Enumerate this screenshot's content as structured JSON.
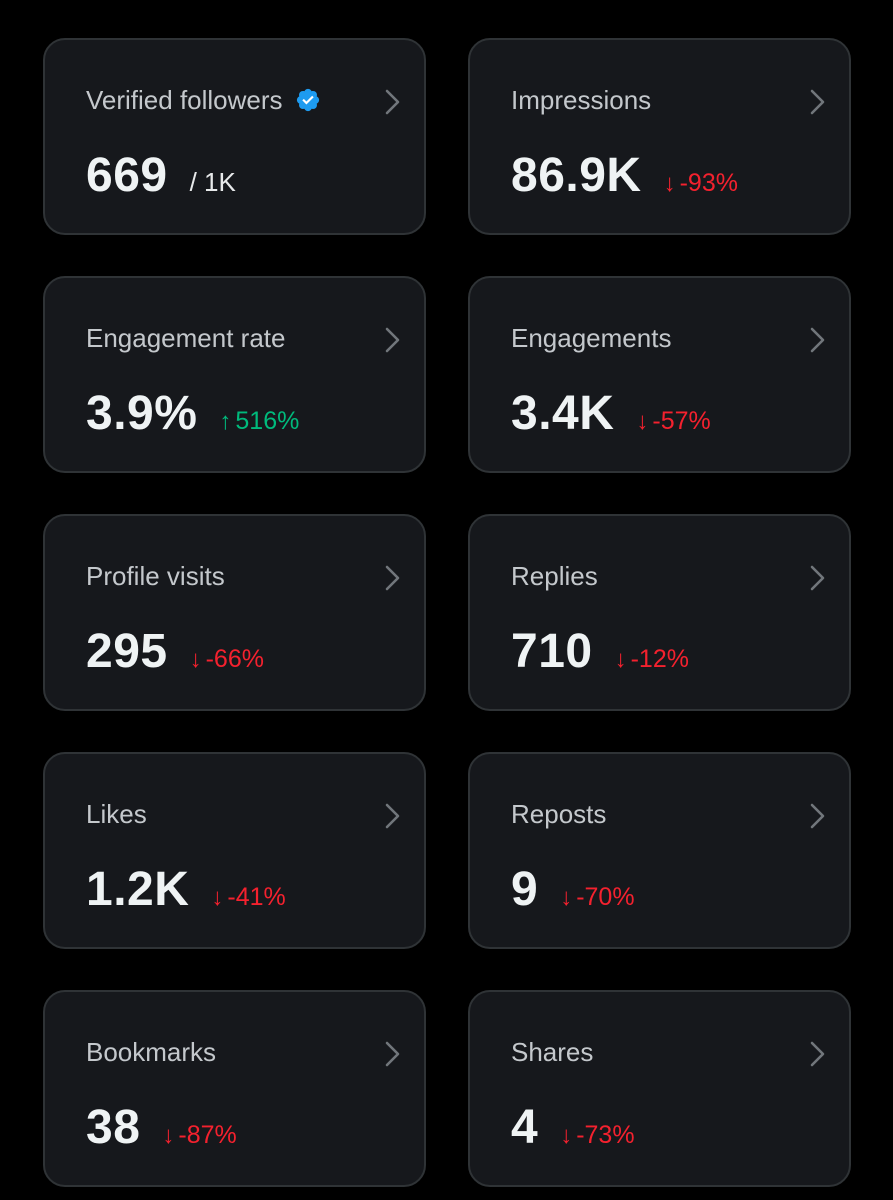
{
  "colors": {
    "background": "#000000",
    "card": "#16181c",
    "border": "#2f3336",
    "negative": "#f4212e",
    "positive": "#00ba7c",
    "verified": "#1d9bf0"
  },
  "cards": [
    {
      "title": "Verified followers",
      "value": "669",
      "suffix": "/ 1K",
      "verified_icon": "verified-badge-icon"
    },
    {
      "title": "Impressions",
      "value": "86.9K",
      "delta": "-93%",
      "direction": "down"
    },
    {
      "title": "Engagement rate",
      "value": "3.9%",
      "delta": "516%",
      "direction": "up"
    },
    {
      "title": "Engagements",
      "value": "3.4K",
      "delta": "-57%",
      "direction": "down"
    },
    {
      "title": "Profile visits",
      "value": "295",
      "delta": "-66%",
      "direction": "down"
    },
    {
      "title": "Replies",
      "value": "710",
      "delta": "-12%",
      "direction": "down"
    },
    {
      "title": "Likes",
      "value": "1.2K",
      "delta": "-41%",
      "direction": "down"
    },
    {
      "title": "Reposts",
      "value": "9",
      "delta": "-70%",
      "direction": "down"
    },
    {
      "title": "Bookmarks",
      "value": "38",
      "delta": "-87%",
      "direction": "down"
    },
    {
      "title": "Shares",
      "value": "4",
      "delta": "-73%",
      "direction": "down"
    }
  ],
  "arrows": {
    "down": "↓",
    "up": "↑"
  }
}
